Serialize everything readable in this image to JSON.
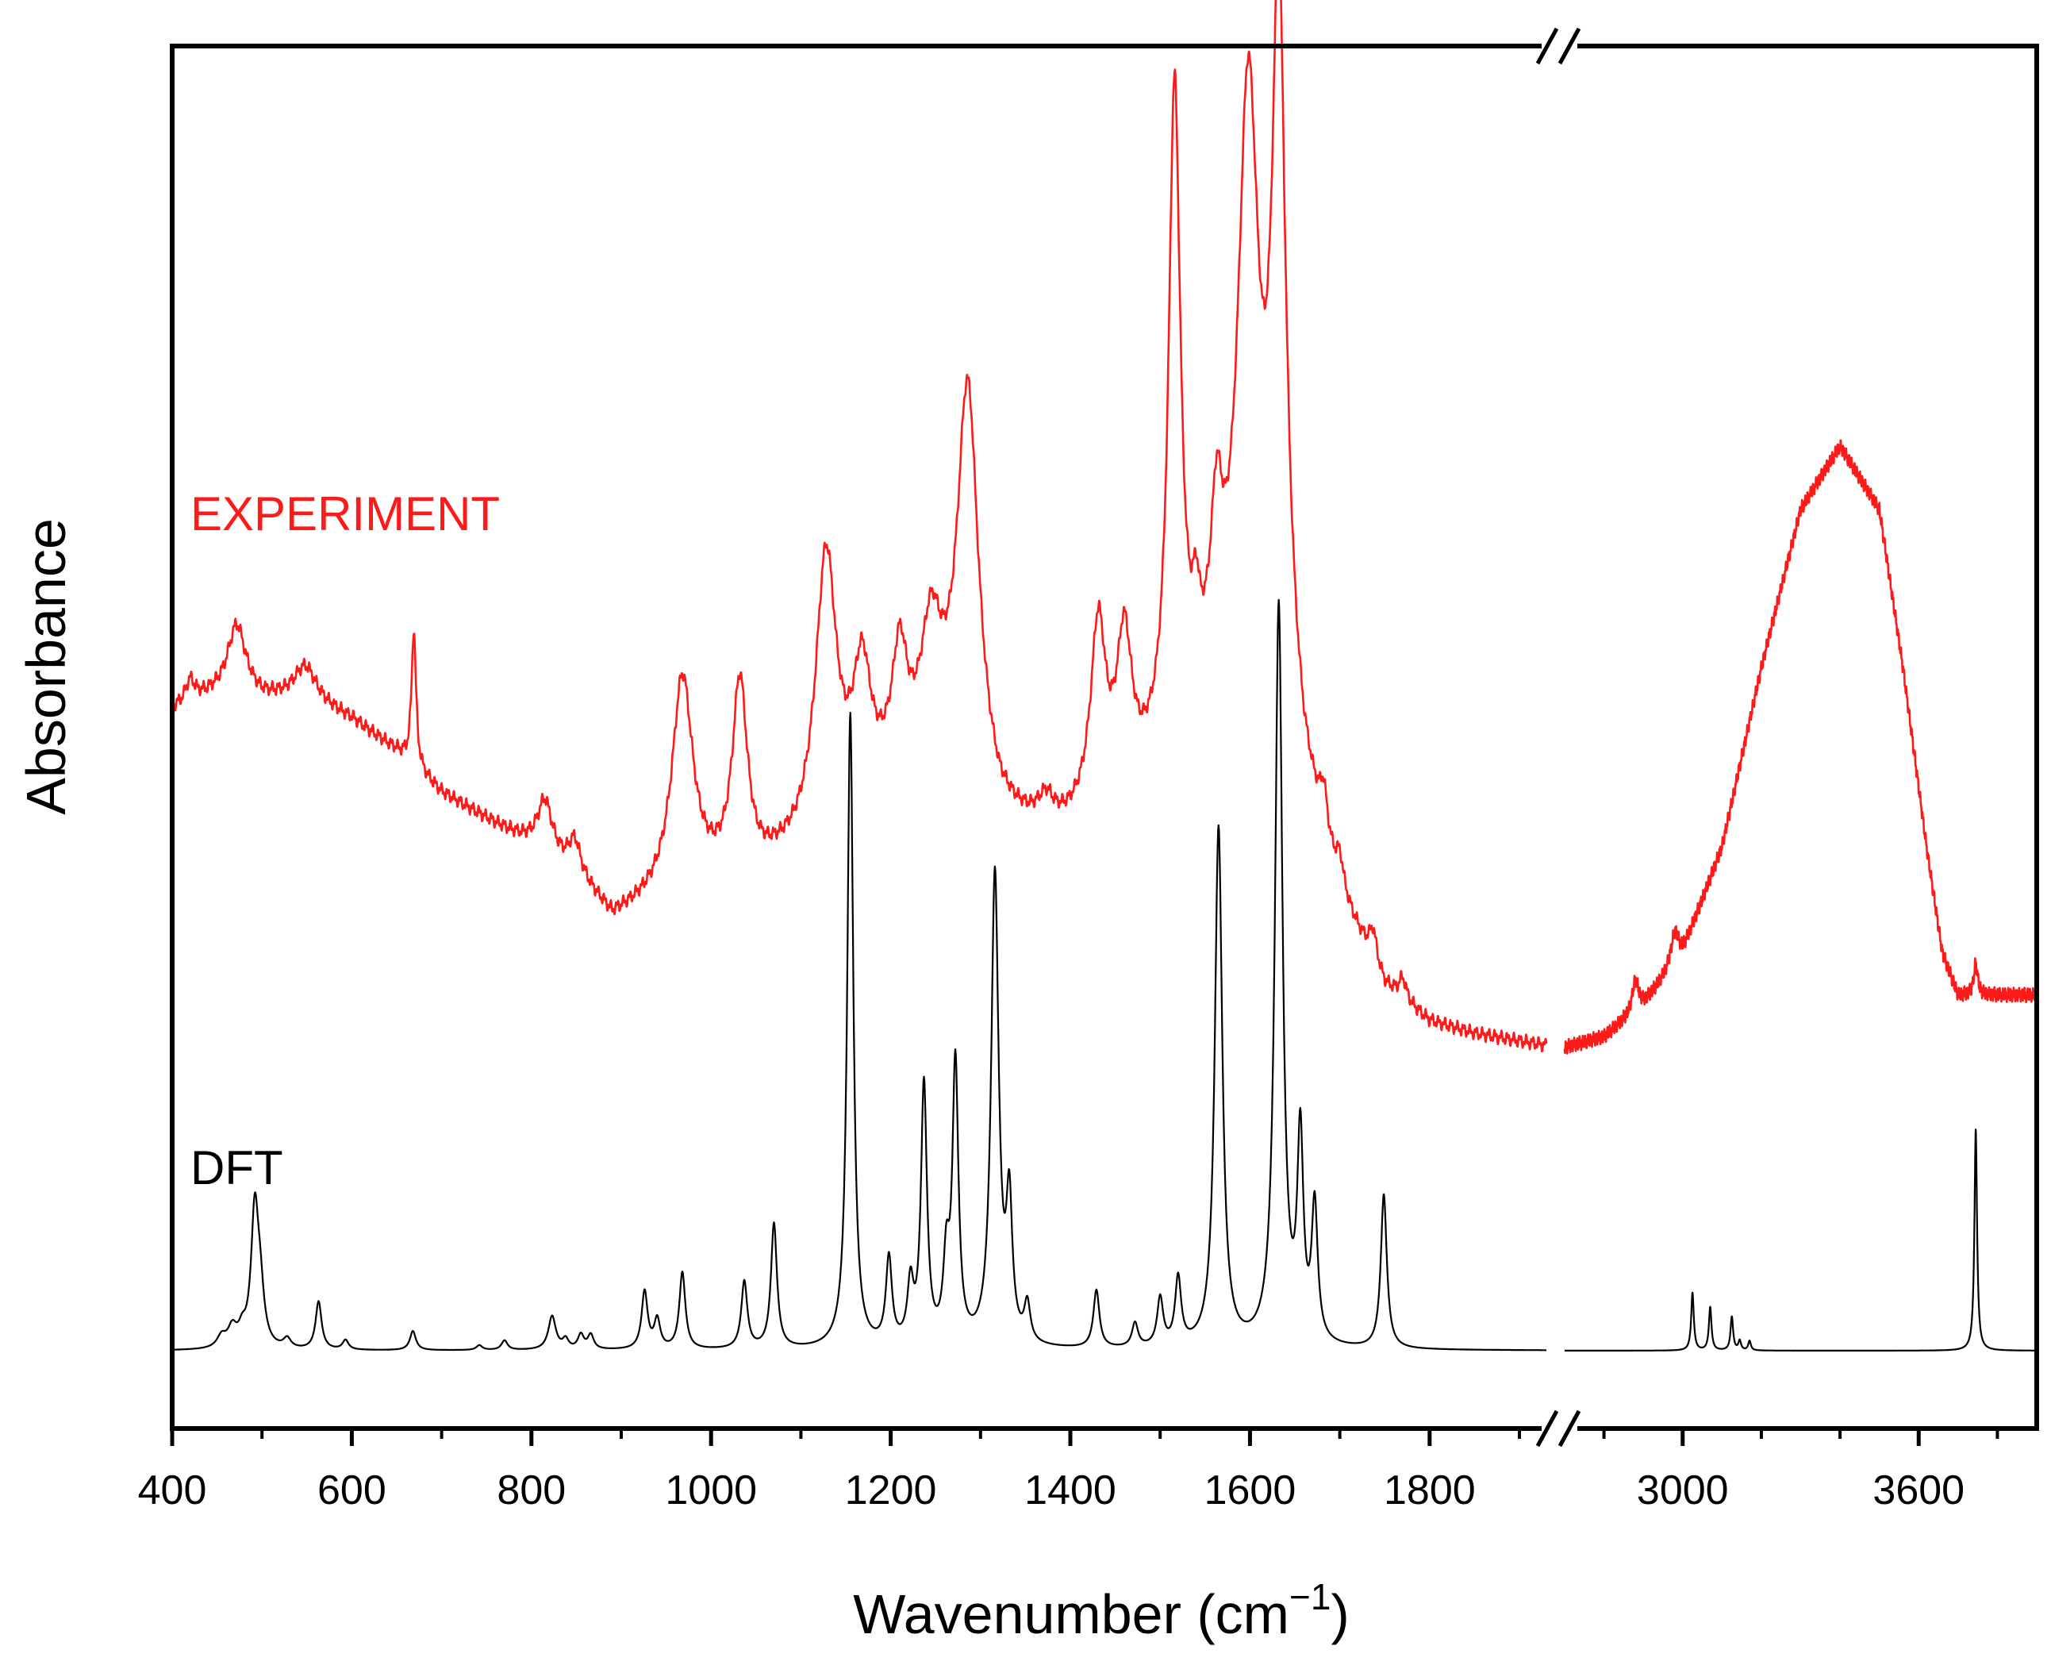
{
  "chart_data": {
    "type": "line",
    "title": "",
    "xlabel": "Wavenumber (cm",
    "xlabel_sup": "−1",
    "xlabel_close": ")",
    "ylabel": "Absorbance",
    "y_ticks_shown": false,
    "axis_break": {
      "after": 1930,
      "before": 2700,
      "marker": "//"
    },
    "x_segments": [
      {
        "xlim": [
          400,
          1930
        ],
        "major_ticks": [
          400,
          600,
          800,
          1000,
          1200,
          1400,
          1600,
          1800
        ],
        "minor_ticks": [
          500,
          700,
          900,
          1100,
          1300,
          1500,
          1700,
          1900
        ]
      },
      {
        "xlim": [
          2700,
          3900
        ],
        "major_ticks": [
          3000,
          3600
        ],
        "minor_ticks": [
          2800,
          3200,
          3400,
          3800
        ]
      }
    ],
    "tick_labels": [
      "400",
      "600",
      "800",
      "1000",
      "1200",
      "1400",
      "1600",
      "1800",
      "3000",
      "3600"
    ],
    "colors": {
      "experiment": "#ff1a1a",
      "dft": "#000000",
      "axis": "#000000"
    },
    "series": [
      {
        "name": "EXPERIMENT",
        "color": "#ff1a1a",
        "baseline": [
          [
            400,
            0.41
          ],
          [
            430,
            0.42
          ],
          [
            470,
            0.43
          ],
          [
            500,
            0.42
          ],
          [
            550,
            0.42
          ],
          [
            600,
            0.4
          ],
          [
            650,
            0.37
          ],
          [
            700,
            0.33
          ],
          [
            760,
            0.3
          ],
          [
            800,
            0.28
          ],
          [
            850,
            0.25
          ],
          [
            890,
            0.21
          ],
          [
            920,
            0.22
          ],
          [
            980,
            0.24
          ],
          [
            1050,
            0.25
          ],
          [
            1100,
            0.27
          ],
          [
            1150,
            0.3
          ],
          [
            1200,
            0.33
          ],
          [
            1280,
            0.36
          ],
          [
            1320,
            0.3
          ],
          [
            1380,
            0.28
          ],
          [
            1420,
            0.3
          ],
          [
            1480,
            0.33
          ],
          [
            1520,
            0.36
          ],
          [
            1560,
            0.4
          ],
          [
            1620,
            0.42
          ],
          [
            1640,
            0.4
          ],
          [
            1660,
            0.32
          ],
          [
            1700,
            0.22
          ],
          [
            1750,
            0.14
          ],
          [
            1800,
            0.11
          ],
          [
            1850,
            0.1
          ],
          [
            1930,
            0.09
          ],
          [
            2700,
            0.09
          ],
          [
            2800,
            0.1
          ],
          [
            2900,
            0.13
          ],
          [
            3000,
            0.18
          ],
          [
            3100,
            0.28
          ],
          [
            3200,
            0.45
          ],
          [
            3300,
            0.6
          ],
          [
            3400,
            0.66
          ],
          [
            3500,
            0.6
          ],
          [
            3560,
            0.45
          ],
          [
            3620,
            0.28
          ],
          [
            3660,
            0.18
          ],
          [
            3700,
            0.14
          ],
          [
            3800,
            0.14
          ],
          [
            3900,
            0.14
          ]
        ],
        "peaks": [
          [
            420,
            0.02,
            6
          ],
          [
            472,
            0.06,
            12
          ],
          [
            548,
            0.03,
            15
          ],
          [
            669,
            0.13,
            3
          ],
          [
            815,
            0.05,
            10
          ],
          [
            848,
            0.03,
            8
          ],
          [
            968,
            0.2,
            14
          ],
          [
            1032,
            0.18,
            10
          ],
          [
            1128,
            0.26,
            14
          ],
          [
            1168,
            0.12,
            12
          ],
          [
            1210,
            0.11,
            10
          ],
          [
            1245,
            0.12,
            14
          ],
          [
            1286,
            0.35,
            14
          ],
          [
            1374,
            0.03,
            12
          ],
          [
            1431,
            0.17,
            10
          ],
          [
            1460,
            0.14,
            10
          ],
          [
            1516,
            0.62,
            8
          ],
          [
            1540,
            0.06,
            5
          ],
          [
            1563,
            0.14,
            8
          ],
          [
            1598,
            0.56,
            14
          ],
          [
            1632,
            0.64,
            9
          ],
          [
            1682,
            0.04,
            5
          ],
          [
            1700,
            0.03,
            5
          ],
          [
            1737,
            0.03,
            5
          ],
          [
            1770,
            0.02,
            5
          ],
          [
            2880,
            0.03,
            10
          ],
          [
            2980,
            0.03,
            12
          ],
          [
            3745,
            0.03,
            6
          ]
        ],
        "x_range": [
          400,
          3900
        ]
      },
      {
        "name": "DFT",
        "color": "#000000",
        "baseline_level": 0.0,
        "peaks": [
          [
            455,
            0.012,
            6
          ],
          [
            467,
            0.02,
            6
          ],
          [
            478,
            0.015,
            5
          ],
          [
            492,
            0.14,
            5
          ],
          [
            498,
            0.05,
            5
          ],
          [
            528,
            0.01,
            5
          ],
          [
            563,
            0.05,
            4
          ],
          [
            593,
            0.01,
            4
          ],
          [
            668,
            0.02,
            4
          ],
          [
            742,
            0.005,
            4
          ],
          [
            770,
            0.01,
            4
          ],
          [
            823,
            0.035,
            5
          ],
          [
            838,
            0.01,
            4
          ],
          [
            855,
            0.015,
            4
          ],
          [
            866,
            0.015,
            4
          ],
          [
            926,
            0.06,
            4
          ],
          [
            940,
            0.03,
            4
          ],
          [
            968,
            0.08,
            4
          ],
          [
            1037,
            0.07,
            4
          ],
          [
            1070,
            0.13,
            4
          ],
          [
            1155,
            0.66,
            4
          ],
          [
            1198,
            0.09,
            4
          ],
          [
            1222,
            0.06,
            4
          ],
          [
            1237,
            0.27,
            4
          ],
          [
            1262,
            0.08,
            4
          ],
          [
            1272,
            0.29,
            4
          ],
          [
            1316,
            0.49,
            5
          ],
          [
            1332,
            0.14,
            4
          ],
          [
            1352,
            0.04,
            4
          ],
          [
            1429,
            0.06,
            4
          ],
          [
            1472,
            0.025,
            4
          ],
          [
            1500,
            0.05,
            4
          ],
          [
            1520,
            0.07,
            4
          ],
          [
            1565,
            0.54,
            5
          ],
          [
            1632,
            0.77,
            5
          ],
          [
            1656,
            0.21,
            4
          ],
          [
            1672,
            0.14,
            4
          ],
          [
            1749,
            0.16,
            4
          ],
          [
            3025,
            0.06,
            4
          ],
          [
            3070,
            0.045,
            4
          ],
          [
            3125,
            0.035,
            4
          ],
          [
            3145,
            0.01,
            4
          ],
          [
            3170,
            0.01,
            4
          ],
          [
            3745,
            0.23,
            4
          ]
        ],
        "x_range": [
          400,
          3900
        ]
      }
    ],
    "annotations": [
      {
        "text": "EXPERIMENT",
        "color": "#ff1a1a",
        "anchor": "left-middle"
      },
      {
        "text": "DFT",
        "color": "#000000",
        "anchor": "left-lower"
      }
    ]
  }
}
